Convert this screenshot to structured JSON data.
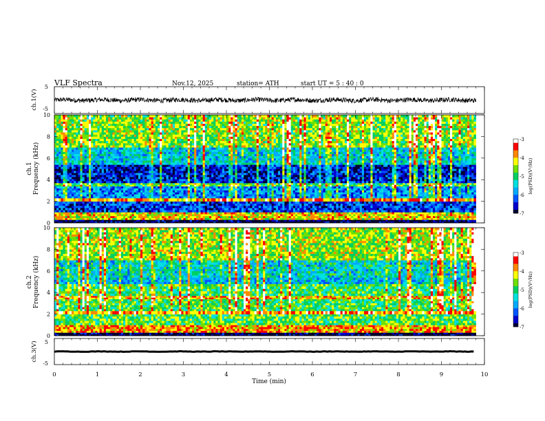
{
  "header": {
    "title": "VLF  Spectra",
    "date": "Nov.12, 2025",
    "station": "station= ATH",
    "start_ut": "start  UT  =   5  : 40 : 0"
  },
  "chart_data": [
    {
      "type": "line",
      "name": "ch1-waveform",
      "ylabel": "ch.1(V)",
      "ylim": [
        -5,
        5
      ],
      "yticks": [
        "5",
        "-5"
      ],
      "baseline": 0,
      "noise_amplitude": 0.9
    },
    {
      "type": "heatmap",
      "name": "ch1-spectrogram",
      "ylabel": "ch.1\nFrequency  (kHz)",
      "ylabel_lines": [
        "ch.1",
        "Frequency  (kHz)"
      ],
      "ylim": [
        0,
        10
      ],
      "yticks": [
        "0",
        "2",
        "4",
        "6",
        "8",
        "10"
      ],
      "colorbar": {
        "label": "log(PSD)(V²/Hz)",
        "range": [
          -7,
          -3
        ],
        "ticks": [
          "-3",
          "-4",
          "-5",
          "-6",
          "-7"
        ]
      },
      "bands": [
        {
          "f": [
            0,
            0.3
          ],
          "level": -7
        },
        {
          "f": [
            0.3,
            1.0
          ],
          "level": -4.2
        },
        {
          "f": [
            1.0,
            2.0
          ],
          "level": -6.3
        },
        {
          "f": [
            2.0,
            2.3
          ],
          "level": -3.8
        },
        {
          "f": [
            2.3,
            3.4
          ],
          "level": -5.9
        },
        {
          "f": [
            3.4,
            3.7
          ],
          "level": -4.8
        },
        {
          "f": [
            3.7,
            5.4
          ],
          "level": -6.5
        },
        {
          "f": [
            5.4,
            7.0
          ],
          "level": -5.5
        },
        {
          "f": [
            7.0,
            10.0
          ],
          "level": -4.6
        }
      ]
    },
    {
      "type": "heatmap",
      "name": "ch2-spectrogram",
      "ylabel": "ch.2\nFrequency  (kHz)",
      "ylabel_lines": [
        "ch.2",
        "Frequency  (kHz)"
      ],
      "ylim": [
        0,
        10
      ],
      "yticks": [
        "0",
        "2",
        "4",
        "6",
        "8",
        "10"
      ],
      "colorbar": {
        "label": "log(PSD)(V²/Hz)",
        "range": [
          -7,
          -3
        ],
        "ticks": [
          "-3",
          "-4",
          "-5",
          "-6",
          "-7"
        ]
      },
      "bands": [
        {
          "f": [
            0,
            0.3
          ],
          "level": -7
        },
        {
          "f": [
            0.3,
            1.0
          ],
          "level": -3.9
        },
        {
          "f": [
            1.0,
            2.0
          ],
          "level": -4.8
        },
        {
          "f": [
            2.0,
            2.3
          ],
          "level": -3.7
        },
        {
          "f": [
            2.3,
            3.4
          ],
          "level": -4.9
        },
        {
          "f": [
            3.4,
            3.7
          ],
          "level": -4.0
        },
        {
          "f": [
            3.7,
            4.8
          ],
          "level": -4.9
        },
        {
          "f": [
            4.8,
            5.4
          ],
          "level": -5.6
        },
        {
          "f": [
            5.4,
            7.0
          ],
          "level": -5.4
        },
        {
          "f": [
            7.0,
            10.0
          ],
          "level": -4.5
        }
      ]
    },
    {
      "type": "line",
      "name": "ch3-waveform",
      "ylabel": "ch.3(V)",
      "ylim": [
        -5,
        5
      ],
      "yticks": [
        "5",
        "-5"
      ],
      "baseline": 0,
      "noise_amplitude": 0.25
    }
  ],
  "xaxis": {
    "label": "Time  (min)",
    "range": [
      0,
      10
    ],
    "ticks": [
      "0",
      "1",
      "2",
      "3",
      "4",
      "5",
      "6",
      "7",
      "8",
      "9",
      "10"
    ],
    "data_end": 9.8
  },
  "colors": {
    "scale": [
      "#000033",
      "#0000cc",
      "#0055ff",
      "#00aaff",
      "#00e0e0",
      "#00d060",
      "#70e000",
      "#ffff00",
      "#ff8800",
      "#ff0000",
      "#ffffff"
    ],
    "line": "#000000"
  }
}
